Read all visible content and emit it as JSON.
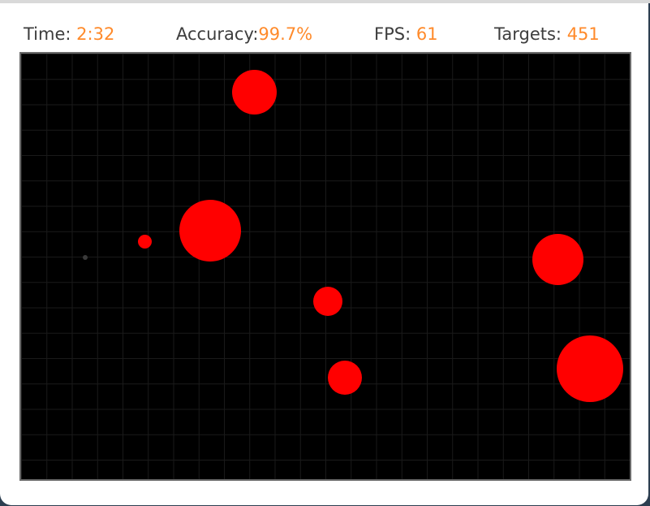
{
  "hud": {
    "time_label": "Time:",
    "time_value": "2:32",
    "accuracy_label": "Accuracy:",
    "accuracy_value": "99.7%",
    "fps_label": "FPS:",
    "fps_value": "61",
    "targets_label": "Targets:",
    "targets_value": "451"
  },
  "colors": {
    "target": "#ff0000",
    "hud_value": "#ff8a2a",
    "arena_background": "#000000"
  }
}
